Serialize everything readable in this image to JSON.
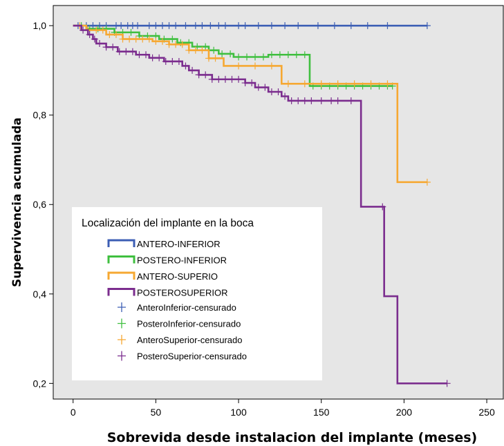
{
  "chart_data": {
    "type": "line",
    "title": "",
    "xlabel": "Sobrevida desde instalacion del implante (meses)",
    "ylabel": "Supervivencia acumulada",
    "xlim": [
      -12,
      260
    ],
    "ylim": [
      0.165,
      1.045
    ],
    "x_ticks": [
      0,
      50,
      100,
      150,
      200,
      250
    ],
    "y_ticks": [
      0.2,
      0.4,
      0.6,
      0.8,
      1.0
    ],
    "x_tick_labels": [
      "0",
      "50",
      "100",
      "150",
      "200",
      "250"
    ],
    "y_tick_labels": [
      "0,2",
      "0,4",
      "0,6",
      "0,8",
      "1,0"
    ],
    "grid": false,
    "background": "#e6e6e6",
    "legend_title": "Localización del implante en la boca",
    "legend_position": "bottom-left",
    "series": [
      {
        "name": "ANTERO-INFERIOR",
        "censored_label": "AnteroInferior-censurado",
        "color": "#3c5eb4",
        "steps": [
          [
            0,
            1.0
          ],
          [
            214,
            1.0
          ]
        ],
        "censored": [
          3,
          8,
          12,
          16,
          20,
          26,
          29,
          33,
          36,
          39,
          46,
          50,
          54,
          58,
          62,
          68,
          74,
          78,
          83,
          88,
          92,
          100,
          104,
          112,
          120,
          128,
          136,
          148,
          158,
          168,
          178,
          190,
          214
        ]
      },
      {
        "name": "POSTERO-INFERIOR",
        "censored_label": "PosteroInferior-censurado",
        "color": "#3fbf3f",
        "steps": [
          [
            0,
            1.0
          ],
          [
            8,
            0.993
          ],
          [
            25,
            0.985
          ],
          [
            40,
            0.977
          ],
          [
            52,
            0.97
          ],
          [
            63,
            0.962
          ],
          [
            72,
            0.953
          ],
          [
            82,
            0.945
          ],
          [
            88,
            0.937
          ],
          [
            97,
            0.93
          ],
          [
            108,
            0.93
          ],
          [
            118,
            0.935
          ],
          [
            143,
            0.865
          ],
          [
            193,
            0.865
          ]
        ],
        "censored": [
          5,
          10,
          15,
          20,
          25,
          30,
          35,
          40,
          45,
          50,
          55,
          60,
          65,
          70,
          75,
          80,
          85,
          90,
          95,
          100,
          105,
          110,
          115,
          120,
          125,
          130,
          135,
          140,
          145,
          150,
          155,
          160,
          165,
          170,
          175,
          180,
          185,
          190,
          193
        ]
      },
      {
        "name": "ANTERO-SUPERIO",
        "censored_label": "AnteroSuperior-censurado",
        "color": "#f6a832",
        "steps": [
          [
            0,
            1.0
          ],
          [
            8,
            0.99
          ],
          [
            20,
            0.98
          ],
          [
            30,
            0.97
          ],
          [
            48,
            0.965
          ],
          [
            58,
            0.958
          ],
          [
            70,
            0.945
          ],
          [
            82,
            0.927
          ],
          [
            91,
            0.91
          ],
          [
            126,
            0.87
          ],
          [
            196,
            0.65
          ],
          [
            214,
            0.65
          ]
        ],
        "censored": [
          4,
          9,
          14,
          18,
          22,
          26,
          30,
          34,
          38,
          42,
          46,
          50,
          54,
          58,
          62,
          66,
          70,
          74,
          78,
          82,
          86,
          100,
          110,
          120,
          130,
          140,
          150,
          160,
          170,
          180,
          190,
          214
        ]
      },
      {
        "name": "POSTEROSUPERIOR",
        "censored_label": "PosteroSuperior-censurado",
        "color": "#7b2d8e",
        "steps": [
          [
            0,
            1.0
          ],
          [
            5,
            0.99
          ],
          [
            9,
            0.98
          ],
          [
            12,
            0.97
          ],
          [
            14,
            0.96
          ],
          [
            20,
            0.952
          ],
          [
            27,
            0.942
          ],
          [
            38,
            0.935
          ],
          [
            46,
            0.928
          ],
          [
            55,
            0.92
          ],
          [
            66,
            0.91
          ],
          [
            70,
            0.9
          ],
          [
            76,
            0.89
          ],
          [
            84,
            0.88
          ],
          [
            104,
            0.872
          ],
          [
            110,
            0.862
          ],
          [
            118,
            0.852
          ],
          [
            126,
            0.842
          ],
          [
            130,
            0.832
          ],
          [
            174,
            0.595
          ],
          [
            188,
            0.395
          ],
          [
            196,
            0.2
          ],
          [
            226,
            0.2
          ]
        ],
        "censored": [
          6,
          10,
          13,
          16,
          20,
          24,
          28,
          32,
          36,
          40,
          44,
          48,
          52,
          56,
          60,
          64,
          68,
          72,
          76,
          80,
          84,
          88,
          92,
          96,
          100,
          104,
          108,
          112,
          116,
          120,
          124,
          128,
          132,
          136,
          140,
          144,
          150,
          156,
          160,
          168,
          187,
          226
        ]
      }
    ]
  }
}
